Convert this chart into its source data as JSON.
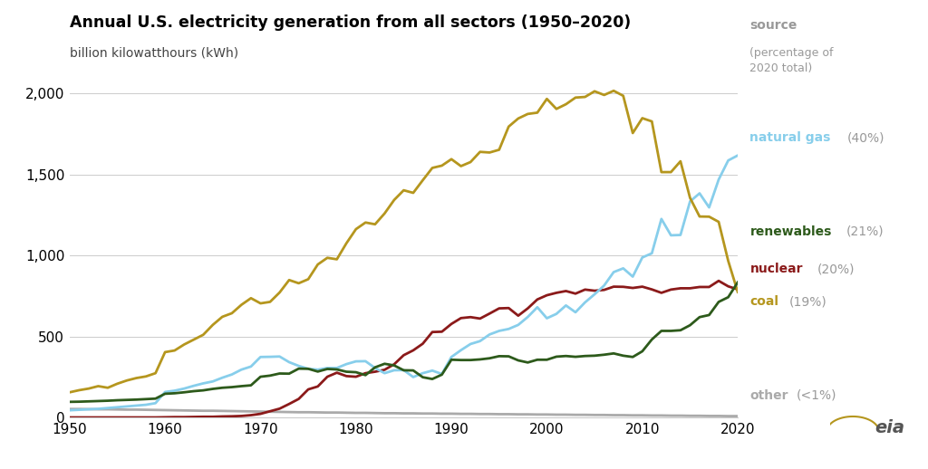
{
  "title": "Annual U.S. electricity generation from all sectors (1950–2020)",
  "subtitle": "billion kilowatthours (kWh)",
  "background_color": "#ffffff",
  "title_color": "#000000",
  "subtitle_color": "#444444",
  "years": [
    1950,
    1951,
    1952,
    1953,
    1954,
    1955,
    1956,
    1957,
    1958,
    1959,
    1960,
    1961,
    1962,
    1963,
    1964,
    1965,
    1966,
    1967,
    1968,
    1969,
    1970,
    1971,
    1972,
    1973,
    1974,
    1975,
    1976,
    1977,
    1978,
    1979,
    1980,
    1981,
    1982,
    1983,
    1984,
    1985,
    1986,
    1987,
    1988,
    1989,
    1990,
    1991,
    1992,
    1993,
    1994,
    1995,
    1996,
    1997,
    1998,
    1999,
    2000,
    2001,
    2002,
    2003,
    2004,
    2005,
    2006,
    2007,
    2008,
    2009,
    2010,
    2011,
    2012,
    2013,
    2014,
    2015,
    2016,
    2017,
    2018,
    2019,
    2020
  ],
  "coal": [
    155,
    168,
    178,
    193,
    183,
    208,
    228,
    243,
    253,
    273,
    403,
    413,
    450,
    480,
    510,
    571,
    621,
    643,
    695,
    736,
    704,
    713,
    771,
    848,
    828,
    853,
    944,
    985,
    976,
    1075,
    1162,
    1203,
    1192,
    1259,
    1342,
    1402,
    1386,
    1464,
    1540,
    1554,
    1594,
    1551,
    1576,
    1639,
    1635,
    1652,
    1795,
    1845,
    1873,
    1881,
    1966,
    1904,
    1933,
    1974,
    1978,
    2013,
    1990,
    2016,
    1985,
    1755,
    1847,
    1827,
    1514,
    1514,
    1581,
    1355,
    1240,
    1239,
    1207,
    966,
    774
  ],
  "natural_gas": [
    44,
    47,
    50,
    53,
    58,
    63,
    68,
    73,
    78,
    88,
    157,
    165,
    178,
    195,
    210,
    222,
    245,
    265,
    295,
    314,
    373,
    374,
    376,
    341,
    318,
    300,
    295,
    305,
    305,
    329,
    346,
    347,
    305,
    273,
    291,
    292,
    249,
    273,
    289,
    268,
    373,
    415,
    453,
    471,
    512,
    534,
    546,
    571,
    620,
    680,
    612,
    639,
    691,
    649,
    710,
    760,
    814,
    897,
    920,
    869,
    987,
    1013,
    1225,
    1124,
    1126,
    1333,
    1383,
    1296,
    1468,
    1586,
    1617
  ],
  "nuclear": [
    0,
    0,
    0,
    0,
    0,
    0,
    0,
    0,
    0,
    0,
    1,
    2,
    2,
    3,
    4,
    4,
    6,
    7,
    9,
    14,
    22,
    38,
    54,
    83,
    114,
    173,
    191,
    251,
    276,
    255,
    251,
    273,
    282,
    294,
    328,
    384,
    414,
    455,
    527,
    529,
    577,
    613,
    619,
    610,
    641,
    673,
    675,
    628,
    673,
    728,
    754,
    769,
    780,
    764,
    789,
    782,
    787,
    807,
    806,
    799,
    807,
    790,
    769,
    789,
    797,
    797,
    805,
    805,
    843,
    809,
    790
  ],
  "renewables": [
    96,
    97,
    99,
    101,
    103,
    106,
    108,
    110,
    113,
    116,
    146,
    149,
    155,
    162,
    167,
    176,
    183,
    187,
    193,
    198,
    251,
    258,
    271,
    270,
    301,
    300,
    283,
    299,
    296,
    282,
    279,
    261,
    309,
    331,
    321,
    291,
    290,
    248,
    237,
    264,
    356,
    354,
    354,
    358,
    365,
    378,
    377,
    352,
    339,
    356,
    356,
    375,
    379,
    374,
    379,
    381,
    387,
    395,
    381,
    373,
    408,
    481,
    534,
    534,
    538,
    569,
    619,
    632,
    713,
    742,
    834
  ],
  "other": [
    52,
    52,
    51,
    50,
    50,
    49,
    48,
    48,
    47,
    46,
    45,
    44,
    43,
    42,
    41,
    41,
    40,
    39,
    38,
    37,
    36,
    35,
    34,
    33,
    32,
    32,
    31,
    30,
    30,
    29,
    28,
    28,
    27,
    26,
    26,
    25,
    25,
    24,
    24,
    23,
    23,
    22,
    22,
    21,
    21,
    20,
    20,
    19,
    19,
    18,
    18,
    17,
    17,
    16,
    16,
    15,
    15,
    14,
    14,
    13,
    13,
    12,
    12,
    11,
    11,
    10,
    10,
    9,
    9,
    8,
    8
  ],
  "series_colors": {
    "coal": "#b5961e",
    "natural_gas": "#87ceeb",
    "nuclear": "#8b1a1a",
    "renewables": "#2d5a1b",
    "other": "#aaaaaa"
  },
  "ylim": [
    0,
    2200
  ],
  "yticks": [
    0,
    500,
    1000,
    1500,
    2000
  ],
  "xlim": [
    1950,
    2020
  ],
  "xticks": [
    1950,
    1960,
    1970,
    1980,
    1990,
    2000,
    2010,
    2020
  ],
  "line_width": 2.0
}
